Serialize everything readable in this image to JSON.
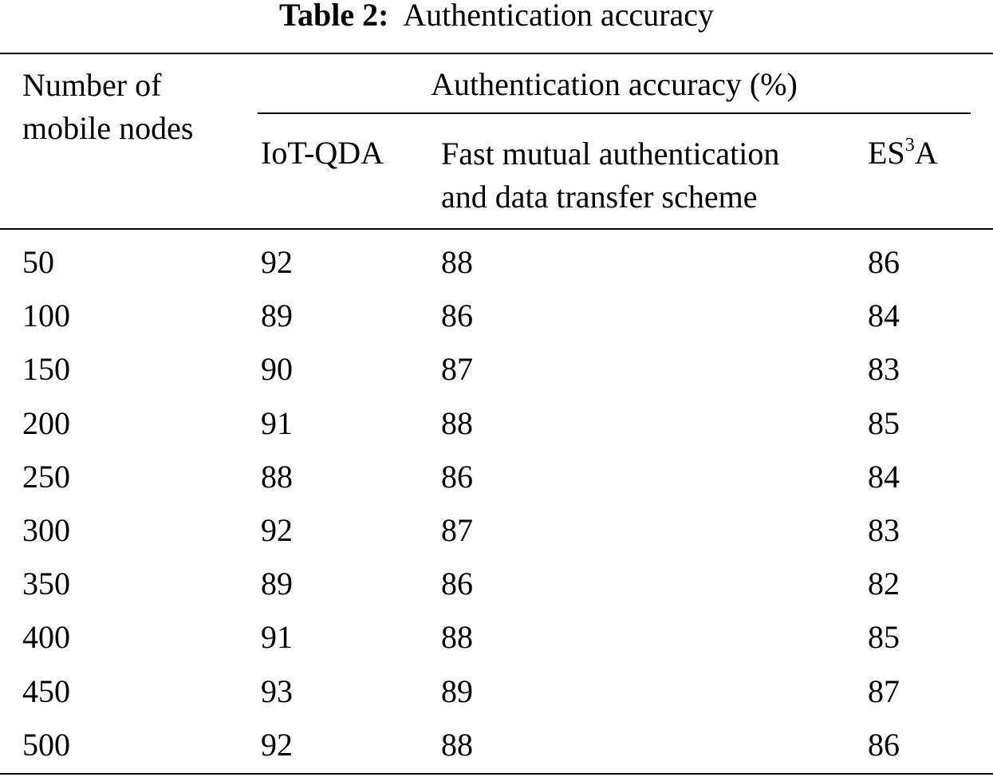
{
  "caption": {
    "label": "Table 2:",
    "title": "Authentication accuracy"
  },
  "header": {
    "nodes_line1": "Number of",
    "nodes_line2": "mobile nodes",
    "group": "Authentication accuracy (%)",
    "col_iot": "IoT-QDA",
    "col_fast_line1": "Fast mutual authentication",
    "col_fast_line2": "and data transfer scheme",
    "col_es_base": "ES",
    "col_es_sup": "3",
    "col_es_tail": "A"
  },
  "rows": [
    {
      "nodes": "50",
      "iot": "92",
      "fast": "88",
      "es": "86"
    },
    {
      "nodes": "100",
      "iot": "89",
      "fast": "86",
      "es": "84"
    },
    {
      "nodes": "150",
      "iot": "90",
      "fast": "87",
      "es": "83"
    },
    {
      "nodes": "200",
      "iot": "91",
      "fast": "88",
      "es": "85"
    },
    {
      "nodes": "250",
      "iot": "88",
      "fast": "86",
      "es": "84"
    },
    {
      "nodes": "300",
      "iot": "92",
      "fast": "87",
      "es": "83"
    },
    {
      "nodes": "350",
      "iot": "89",
      "fast": "86",
      "es": "82"
    },
    {
      "nodes": "400",
      "iot": "91",
      "fast": "88",
      "es": "85"
    },
    {
      "nodes": "450",
      "iot": "93",
      "fast": "89",
      "es": "87"
    },
    {
      "nodes": "500",
      "iot": "92",
      "fast": "88",
      "es": "86"
    }
  ]
}
